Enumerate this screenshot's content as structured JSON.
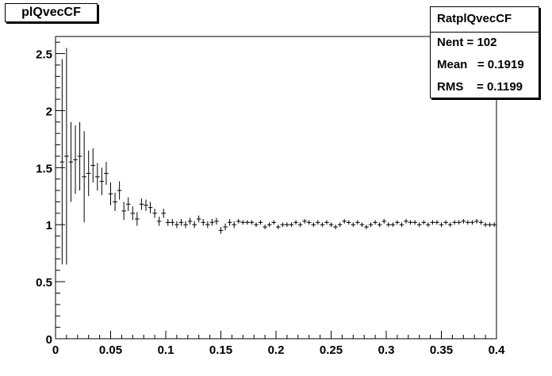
{
  "title": "plQvecCF",
  "stats": {
    "name": "RatplQvecCF",
    "entries_label": "Nent",
    "entries_value": "102",
    "mean_label": "Mean",
    "mean_value": "0.1919",
    "rms_label": "RMS",
    "rms_value": "0.1199"
  },
  "chart_data": {
    "type": "scatter",
    "title": "plQvecCF",
    "xlabel": "",
    "ylabel": "",
    "xlim": [
      0,
      0.4
    ],
    "ylim": [
      0,
      2.65
    ],
    "grid": false,
    "legend": "top-right",
    "xticks": [
      0,
      0.05,
      0.1,
      0.15,
      0.2,
      0.25,
      0.3,
      0.35,
      0.4
    ],
    "xtick_labels": [
      "0",
      "0.05",
      "0.1",
      "0.15",
      "0.2",
      "0.25",
      "0.3",
      "0.35",
      "0.4"
    ],
    "yticks": [
      0,
      0.5,
      1,
      1.5,
      2,
      2.5
    ],
    "ytick_labels": [
      "0",
      "0.5",
      "1",
      "1.5",
      "2",
      "2.5"
    ],
    "bin_width": 0.004,
    "x": [
      0.006,
      0.01,
      0.014,
      0.018,
      0.022,
      0.026,
      0.03,
      0.034,
      0.038,
      0.042,
      0.046,
      0.05,
      0.054,
      0.058,
      0.062,
      0.066,
      0.07,
      0.074,
      0.078,
      0.082,
      0.086,
      0.09,
      0.094,
      0.098,
      0.102,
      0.106,
      0.11,
      0.114,
      0.118,
      0.122,
      0.126,
      0.13,
      0.134,
      0.138,
      0.142,
      0.146,
      0.15,
      0.154,
      0.158,
      0.162,
      0.166,
      0.17,
      0.174,
      0.178,
      0.182,
      0.186,
      0.19,
      0.194,
      0.198,
      0.202,
      0.206,
      0.21,
      0.214,
      0.218,
      0.222,
      0.226,
      0.23,
      0.234,
      0.238,
      0.242,
      0.246,
      0.25,
      0.254,
      0.258,
      0.262,
      0.266,
      0.27,
      0.274,
      0.278,
      0.282,
      0.286,
      0.29,
      0.294,
      0.298,
      0.302,
      0.306,
      0.31,
      0.314,
      0.318,
      0.322,
      0.326,
      0.33,
      0.334,
      0.338,
      0.342,
      0.346,
      0.35,
      0.354,
      0.358,
      0.362,
      0.366,
      0.37,
      0.374,
      0.378,
      0.382,
      0.386,
      0.39,
      0.394,
      0.398
    ],
    "y": [
      1.55,
      1.6,
      1.55,
      1.57,
      1.6,
      1.42,
      1.45,
      1.52,
      1.42,
      1.38,
      1.45,
      1.27,
      1.2,
      1.3,
      1.12,
      1.18,
      1.1,
      1.05,
      1.18,
      1.17,
      1.15,
      1.1,
      1.03,
      1.1,
      1.02,
      1.02,
      1.0,
      1.02,
      1.0,
      1.03,
      1.0,
      1.05,
      1.02,
      1.0,
      1.02,
      1.03,
      0.95,
      0.98,
      1.02,
      1.0,
      1.03,
      1.02,
      1.02,
      1.02,
      1.0,
      1.02,
      0.98,
      1.0,
      1.02,
      0.98,
      1.0,
      1.0,
      1.0,
      1.02,
      1.0,
      1.03,
      1.02,
      1.0,
      1.02,
      1.0,
      1.02,
      1.0,
      0.98,
      1.0,
      1.03,
      1.02,
      1.0,
      1.02,
      1.0,
      0.98,
      1.0,
      1.02,
      1.0,
      1.03,
      1.0,
      1.0,
      1.02,
      1.0,
      1.03,
      1.02,
      1.02,
      1.0,
      1.02,
      1.0,
      1.02,
      1.02,
      1.0,
      1.02,
      1.0,
      1.02,
      1.02,
      1.03,
      1.02,
      1.02,
      1.03,
      1.02,
      1.0,
      1.0,
      1.0
    ],
    "yerr": [
      0.9,
      0.95,
      0.35,
      0.3,
      0.3,
      0.4,
      0.2,
      0.15,
      0.12,
      0.12,
      0.1,
      0.1,
      0.08,
      0.08,
      0.08,
      0.06,
      0.06,
      0.06,
      0.05,
      0.05,
      0.05,
      0.04,
      0.04,
      0.04,
      0.03,
      0.03,
      0.03,
      0.03,
      0.03,
      0.03,
      0.03,
      0.03,
      0.03,
      0.03,
      0.03,
      0.03,
      0.03,
      0.03,
      0.03,
      0.03,
      0.02,
      0.02,
      0.02,
      0.02,
      0.02,
      0.02,
      0.02,
      0.02,
      0.02,
      0.02,
      0.02,
      0.02,
      0.02,
      0.02,
      0.02,
      0.02,
      0.02,
      0.02,
      0.02,
      0.02,
      0.02,
      0.02,
      0.02,
      0.02,
      0.02,
      0.02,
      0.02,
      0.02,
      0.02,
      0.02,
      0.02,
      0.02,
      0.02,
      0.02,
      0.02,
      0.02,
      0.02,
      0.02,
      0.02,
      0.02,
      0.02,
      0.02,
      0.02,
      0.02,
      0.02,
      0.02,
      0.02,
      0.02,
      0.02,
      0.02,
      0.02,
      0.02,
      0.02,
      0.02,
      0.02,
      0.02,
      0.02,
      0.02,
      0.02
    ],
    "color": "#000000"
  }
}
